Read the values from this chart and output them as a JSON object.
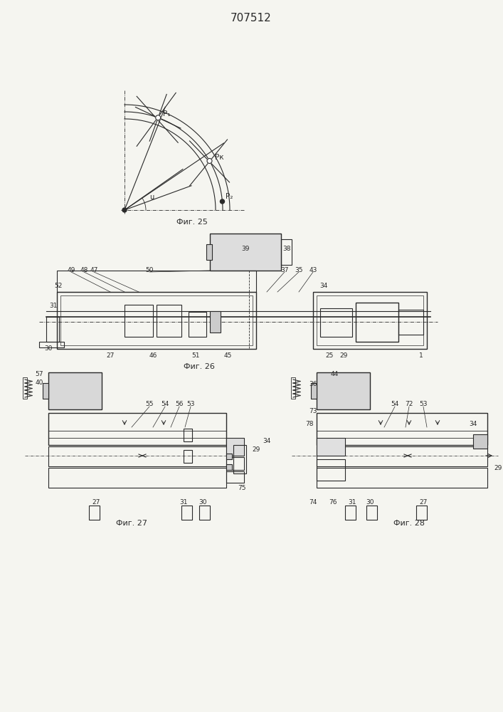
{
  "title": "707512",
  "title_fontsize": 11,
  "bg_color": "#f5f5f0",
  "line_color": "#2a2a2a",
  "fig25_label": "Фиг. 25",
  "fig26_label": "Фиг. 26",
  "fig27_label": "Фиг. 27",
  "fig28_label": "Фиг. 28"
}
